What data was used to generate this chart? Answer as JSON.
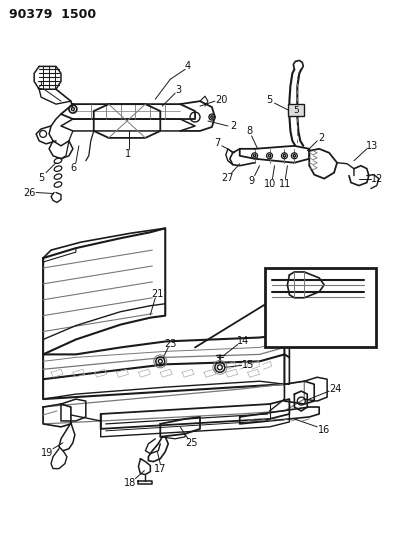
{
  "title": "90379 1500",
  "bg_color": "#ffffff",
  "line_color": "#1a1a1a",
  "text_color": "#111111",
  "fig_width": 4.03,
  "fig_height": 5.33,
  "dpi": 100,
  "gray": "#777777",
  "lt_gray": "#aaaaaa"
}
